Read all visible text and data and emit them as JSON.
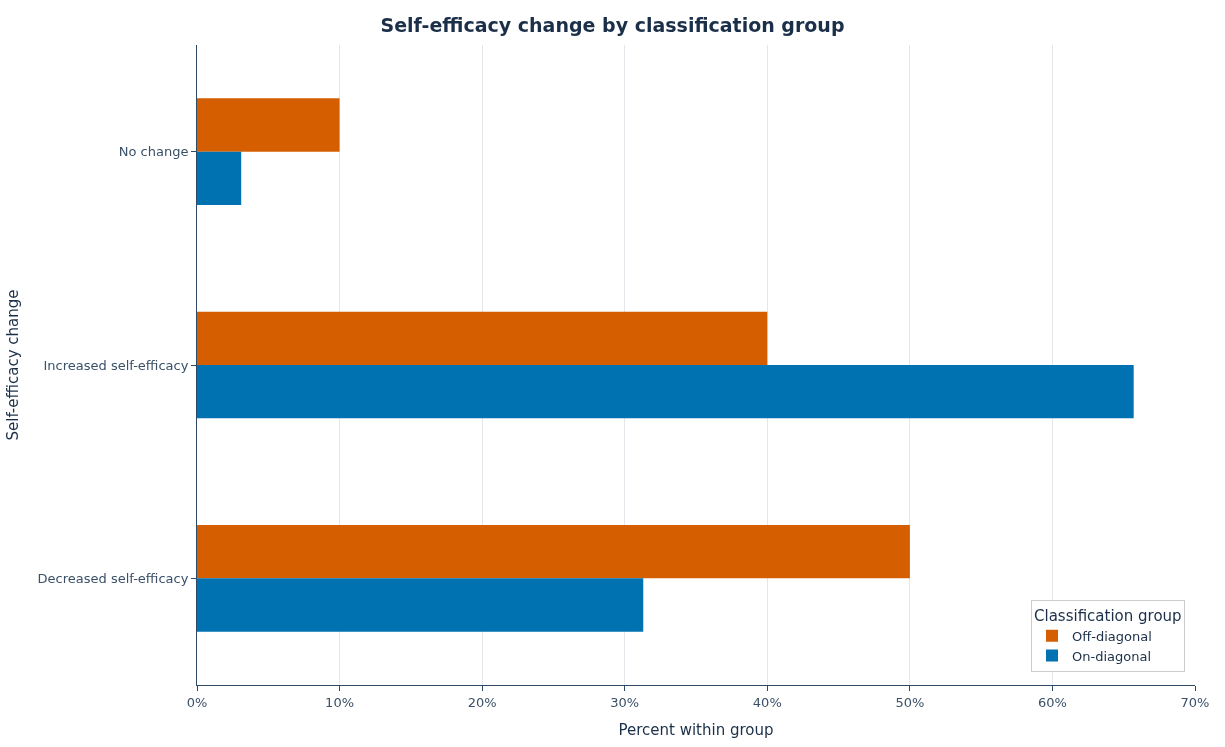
{
  "chart_data": {
    "type": "bar",
    "orientation": "horizontal",
    "title": "Self-efficacy change by classification group",
    "xlabel": "Percent within group",
    "ylabel": "Self-efficacy change",
    "legend_title": "Classification group",
    "categories": [
      "No change",
      "Increased self-efficacy",
      "Decreased self-efficacy"
    ],
    "series": [
      {
        "name": "Off-diagonal",
        "color": "#d55e00",
        "values": [
          10,
          40,
          50
        ]
      },
      {
        "name": "On-diagonal",
        "color": "#0072b2",
        "values": [
          3.1,
          65.7,
          31.3
        ]
      }
    ],
    "xlim": [
      0,
      70
    ],
    "xticks": [
      {
        "value": 0,
        "label": "0%"
      },
      {
        "value": 10,
        "label": "10%"
      },
      {
        "value": 20,
        "label": "20%"
      },
      {
        "value": 30,
        "label": "30%"
      },
      {
        "value": 40,
        "label": "40%"
      },
      {
        "value": 50,
        "label": "50%"
      },
      {
        "value": 60,
        "label": "60%"
      },
      {
        "value": 70,
        "label": "70%"
      }
    ],
    "grid": "x",
    "legend": "bottom right"
  }
}
